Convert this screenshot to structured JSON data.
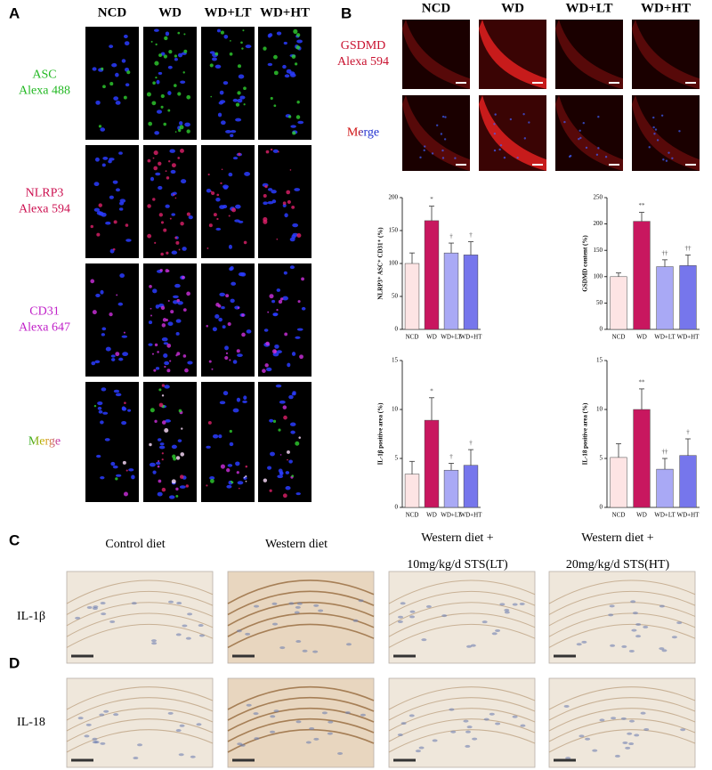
{
  "panel_a": {
    "label": "A",
    "columns": [
      "NCD",
      "WD",
      "WD+LT",
      "WD+HT"
    ],
    "rows": [
      {
        "name": "ASC",
        "stain": "Alexa 488"
      },
      {
        "name": "NLRP3",
        "stain": "Alexa 594"
      },
      {
        "name": "CD31",
        "stain": "Alexa 647"
      },
      {
        "name": "Merge"
      }
    ]
  },
  "panel_b": {
    "label": "B",
    "columns": [
      "NCD",
      "WD",
      "WD+LT",
      "WD+HT"
    ],
    "rows": [
      {
        "name": "GSDMD",
        "stain": "Alexa 594"
      },
      {
        "name": "Merge"
      }
    ]
  },
  "chart_data": [
    {
      "type": "bar",
      "ylabel": "NLRP3⁺ ASC⁺ CD31⁺ (%)",
      "categories": [
        "NCD",
        "WD",
        "WD+LT",
        "WD+HT"
      ],
      "values": [
        100,
        165,
        116,
        113
      ],
      "errors": [
        16,
        22,
        15,
        20
      ],
      "annotations": [
        null,
        "*",
        "†",
        "†"
      ],
      "colors": [
        "#fde4e4",
        "#c8175f",
        "#a9a9f5",
        "#7676ec"
      ],
      "ylim": [
        0,
        200
      ],
      "yticks": [
        0,
        50,
        100,
        150,
        200
      ]
    },
    {
      "type": "bar",
      "ylabel": "GSDMD content (%)",
      "categories": [
        "NCD",
        "WD",
        "WD+LT",
        "WD+HT"
      ],
      "values": [
        100,
        205,
        119,
        121
      ],
      "errors": [
        7,
        17,
        13,
        20
      ],
      "annotations": [
        null,
        "**",
        "††",
        "††"
      ],
      "colors": [
        "#fde4e4",
        "#c8175f",
        "#a9a9f5",
        "#7676ec"
      ],
      "ylim": [
        0,
        250
      ],
      "yticks": [
        0,
        50,
        100,
        150,
        200,
        250
      ]
    },
    {
      "type": "bar",
      "ylabel": "IL-1β positive area (%)",
      "categories": [
        "NCD",
        "WD",
        "WD+LT",
        "WD+HT"
      ],
      "values": [
        3.4,
        8.9,
        3.8,
        4.3
      ],
      "errors": [
        1.3,
        2.3,
        0.7,
        1.6
      ],
      "annotations": [
        null,
        "*",
        "†",
        "†"
      ],
      "colors": [
        "#fde4e4",
        "#c8175f",
        "#a9a9f5",
        "#7676ec"
      ],
      "ylim": [
        0,
        15
      ],
      "yticks": [
        0,
        5,
        10,
        15
      ]
    },
    {
      "type": "bar",
      "ylabel": "IL-18 positive area (%)",
      "categories": [
        "NCD",
        "WD",
        "WD+LT",
        "WD+HT"
      ],
      "values": [
        5.1,
        10.0,
        3.9,
        5.3
      ],
      "errors": [
        1.4,
        2.1,
        1.1,
        1.7
      ],
      "annotations": [
        null,
        "**",
        "††",
        "†"
      ],
      "colors": [
        "#fde4e4",
        "#c8175f",
        "#a9a9f5",
        "#7676ec"
      ],
      "ylim": [
        0,
        15
      ],
      "yticks": [
        0,
        5,
        10,
        15
      ]
    }
  ],
  "panel_c": {
    "label": "C",
    "columns": [
      [
        "Control diet"
      ],
      [
        "Western diet"
      ],
      [
        "Western diet +",
        "10mg/kg/d STS(LT)"
      ],
      [
        "Western diet +",
        "20mg/kg/d STS(HT)"
      ]
    ],
    "row": "IL-1β"
  },
  "panel_d": {
    "label": "D",
    "row": "IL-18"
  }
}
